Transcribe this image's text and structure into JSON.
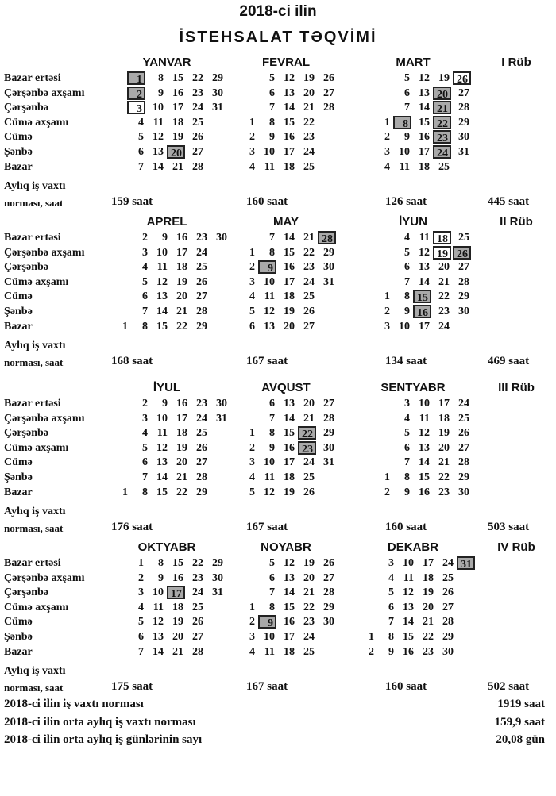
{
  "title": "2018-ci ilin",
  "subtitle": "İSTEHSALAT TƏQVİMİ",
  "weekdays": [
    "Bazar ertəsi",
    "Çərşənbə axşamı",
    "Çərşənbə",
    "Cümə  axşamı",
    "Cümə",
    "Şənbə",
    "Bazar"
  ],
  "norm_label_1": "Aylıq iş vaxtı",
  "norm_label_2": "norması, saat",
  "quarters": [
    {
      "label": "I Rüb",
      "total": "445 saat",
      "months": [
        {
          "name": "YANVAR",
          "norm": "159 saat",
          "holidays": [
            1,
            2,
            20
          ],
          "preholidays": [
            3
          ],
          "rows": [
            [
              1,
              8,
              15,
              22,
              29
            ],
            [
              2,
              9,
              16,
              23,
              30
            ],
            [
              3,
              10,
              17,
              24,
              31
            ],
            [
              4,
              11,
              18,
              25
            ],
            [
              5,
              12,
              19,
              26
            ],
            [
              6,
              13,
              20,
              27
            ],
            [
              7,
              14,
              21,
              28
            ]
          ]
        },
        {
          "name": "FEVRAL",
          "norm": "160 saat",
          "holidays": [],
          "preholidays": [],
          "rows": [
            [
              null,
              5,
              12,
              19,
              26
            ],
            [
              null,
              6,
              13,
              20,
              27
            ],
            [
              null,
              7,
              14,
              21,
              28
            ],
            [
              1,
              8,
              15,
              22
            ],
            [
              2,
              9,
              16,
              23
            ],
            [
              3,
              10,
              17,
              24
            ],
            [
              4,
              11,
              18,
              25
            ]
          ]
        },
        {
          "name": "MART",
          "norm": "126 saat",
          "holidays": [
            8,
            20,
            21,
            22,
            23,
            24
          ],
          "preholidays": [
            26
          ],
          "rows": [
            [
              null,
              5,
              12,
              19,
              26
            ],
            [
              null,
              6,
              13,
              20,
              27
            ],
            [
              null,
              7,
              14,
              21,
              28
            ],
            [
              1,
              8,
              15,
              22,
              29
            ],
            [
              2,
              9,
              16,
              23,
              30
            ],
            [
              3,
              10,
              17,
              24,
              31
            ],
            [
              4,
              11,
              18,
              25
            ]
          ]
        }
      ]
    },
    {
      "label": "II Rüb",
      "total": "469 saat",
      "months": [
        {
          "name": "APREL",
          "norm": "168 saat",
          "holidays": [],
          "preholidays": [],
          "rows": [
            [
              null,
              2,
              9,
              16,
              23,
              30
            ],
            [
              null,
              3,
              10,
              17,
              24
            ],
            [
              null,
              4,
              11,
              18,
              25
            ],
            [
              null,
              5,
              12,
              19,
              26
            ],
            [
              null,
              6,
              13,
              20,
              27
            ],
            [
              null,
              7,
              14,
              21,
              28
            ],
            [
              1,
              8,
              15,
              22,
              29
            ]
          ]
        },
        {
          "name": "MAY",
          "norm": "167 saat",
          "holidays": [
            9,
            28
          ],
          "preholidays": [],
          "rows": [
            [
              null,
              7,
              14,
              21,
              28
            ],
            [
              1,
              8,
              15,
              22,
              29
            ],
            [
              2,
              9,
              16,
              23,
              30
            ],
            [
              3,
              10,
              17,
              24,
              31
            ],
            [
              4,
              11,
              18,
              25
            ],
            [
              5,
              12,
              19,
              26
            ],
            [
              6,
              13,
              20,
              27
            ]
          ]
        },
        {
          "name": "İYUN",
          "norm": "134 saat",
          "holidays": [
            15,
            16,
            26
          ],
          "preholidays": [
            18,
            19
          ],
          "rows": [
            [
              null,
              4,
              11,
              18,
              25
            ],
            [
              null,
              5,
              12,
              19,
              26
            ],
            [
              null,
              6,
              13,
              20,
              27
            ],
            [
              null,
              7,
              14,
              21,
              28
            ],
            [
              1,
              8,
              15,
              22,
              29
            ],
            [
              2,
              9,
              16,
              23,
              30
            ],
            [
              3,
              10,
              17,
              24
            ]
          ]
        }
      ]
    },
    {
      "label": "III Rüb",
      "total": "503 saat",
      "months": [
        {
          "name": "İYUL",
          "norm": "176 saat",
          "holidays": [],
          "preholidays": [],
          "rows": [
            [
              null,
              2,
              9,
              16,
              23,
              30
            ],
            [
              null,
              3,
              10,
              17,
              24,
              31
            ],
            [
              null,
              4,
              11,
              18,
              25
            ],
            [
              null,
              5,
              12,
              19,
              26
            ],
            [
              null,
              6,
              13,
              20,
              27
            ],
            [
              null,
              7,
              14,
              21,
              28
            ],
            [
              1,
              8,
              15,
              22,
              29
            ]
          ]
        },
        {
          "name": "AVQUST",
          "norm": "167 saat",
          "holidays": [
            22,
            23
          ],
          "preholidays": [],
          "rows": [
            [
              null,
              6,
              13,
              20,
              27
            ],
            [
              null,
              7,
              14,
              21,
              28
            ],
            [
              1,
              8,
              15,
              22,
              29
            ],
            [
              2,
              9,
              16,
              23,
              30
            ],
            [
              3,
              10,
              17,
              24,
              31
            ],
            [
              4,
              11,
              18,
              25
            ],
            [
              5,
              12,
              19,
              26
            ]
          ]
        },
        {
          "name": "SENTYABR",
          "norm": "160 saat",
          "holidays": [],
          "preholidays": [],
          "rows": [
            [
              null,
              3,
              10,
              17,
              24
            ],
            [
              null,
              4,
              11,
              18,
              25
            ],
            [
              null,
              5,
              12,
              19,
              26
            ],
            [
              null,
              6,
              13,
              20,
              27
            ],
            [
              null,
              7,
              14,
              21,
              28
            ],
            [
              1,
              8,
              15,
              22,
              29
            ],
            [
              2,
              9,
              16,
              23,
              30
            ]
          ]
        }
      ]
    },
    {
      "label": "IV Rüb",
      "total": "502 saat",
      "months": [
        {
          "name": "OKTYABR",
          "norm": "175 saat",
          "holidays": [
            17
          ],
          "preholidays": [],
          "rows": [
            [
              1,
              8,
              15,
              22,
              29
            ],
            [
              2,
              9,
              16,
              23,
              30
            ],
            [
              3,
              10,
              17,
              24,
              31
            ],
            [
              4,
              11,
              18,
              25
            ],
            [
              5,
              12,
              19,
              26
            ],
            [
              6,
              13,
              20,
              27
            ],
            [
              7,
              14,
              21,
              28
            ]
          ]
        },
        {
          "name": "NOYABR",
          "norm": "167 saat",
          "holidays": [
            9
          ],
          "preholidays": [],
          "rows": [
            [
              null,
              5,
              12,
              19,
              26
            ],
            [
              null,
              6,
              13,
              20,
              27
            ],
            [
              null,
              7,
              14,
              21,
              28
            ],
            [
              1,
              8,
              15,
              22,
              29
            ],
            [
              2,
              9,
              16,
              23,
              30
            ],
            [
              3,
              10,
              17,
              24
            ],
            [
              4,
              11,
              18,
              25
            ]
          ]
        },
        {
          "name": "DEKABR",
          "norm": "160 saat",
          "holidays": [
            31
          ],
          "preholidays": [],
          "rows": [
            [
              null,
              3,
              10,
              17,
              24,
              31
            ],
            [
              null,
              4,
              11,
              18,
              25
            ],
            [
              null,
              5,
              12,
              19,
              26
            ],
            [
              null,
              6,
              13,
              20,
              27
            ],
            [
              null,
              7,
              14,
              21,
              28
            ],
            [
              1,
              8,
              15,
              22,
              29
            ],
            [
              2,
              9,
              16,
              23,
              30
            ]
          ]
        }
      ]
    }
  ],
  "totals": [
    {
      "label": "2018-ci ilin iş vaxtı norması",
      "value": "1919 saat"
    },
    {
      "label": "2018-ci ilin orta aylıq iş vaxtı norması",
      "value": "159,9 saat"
    },
    {
      "label": "2018-ci ilin orta aylıq iş günlərinin sayı",
      "value": "20,08 gün"
    }
  ],
  "colors": {
    "holiday_fill": "#a9a9a9",
    "border": "#222222"
  }
}
